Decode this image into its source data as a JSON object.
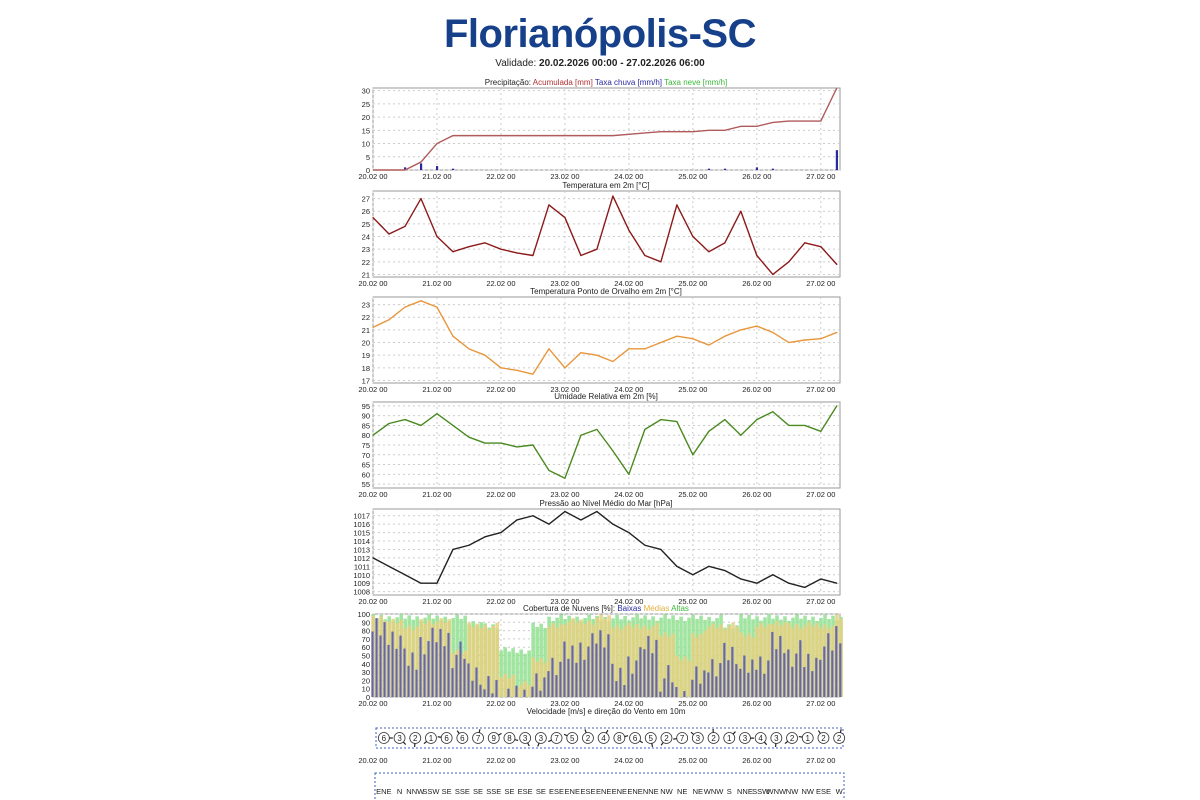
{
  "header": {
    "title": "Florianópolis-SC",
    "validity_label": "Validade:",
    "validity_range": "20.02.2026 00:00 - 27.02.2026 06:00"
  },
  "colors": {
    "title": "#16408a",
    "accum": "#b05a5a",
    "rain": "#2a2aa0",
    "snow": "#3cb83c",
    "temp": "#8b1a1a",
    "dew": "#e8963c",
    "rh": "#4a8a20",
    "pressure": "#222222",
    "low": "#5a5ab0",
    "mid": "#e8d080",
    "high": "#90e090"
  },
  "chart_data": [
    {
      "type": "line",
      "id": "precip",
      "title_parts": [
        {
          "t": "Precipitação: ",
          "c": "#222222"
        },
        {
          "t": "Acumulada [mm] ",
          "c": "#b03030"
        },
        {
          "t": "Taxa chuva [mm/h] ",
          "c": "#2a2aa0"
        },
        {
          "t": "Taxa neve [mm/h]",
          "c": "#3cb83c"
        }
      ],
      "xticks": [
        "20.02 00",
        "21.02 00",
        "22.02 00",
        "23.02 00",
        "24.02 00",
        "25.02 00",
        "26.02 00",
        "27.02 00"
      ],
      "ylim": [
        0,
        31
      ],
      "yticks": [
        0,
        5,
        10,
        15,
        20,
        25,
        30
      ],
      "x_step_hours": 6,
      "series": [
        {
          "name": "Acumulada [mm]",
          "values": [
            0,
            0,
            0,
            3,
            10,
            13,
            13,
            13,
            13,
            13,
            13,
            13,
            13,
            13,
            13,
            13,
            13.5,
            14,
            14.5,
            14.5,
            14.5,
            15,
            15,
            16.5,
            16.5,
            18,
            18.5,
            18.5,
            18.5,
            31
          ]
        },
        {
          "name": "Taxa chuva [mm/h]",
          "kind": "bar",
          "values": [
            0,
            0,
            1,
            2.5,
            1.5,
            0.5,
            0,
            0,
            0,
            0,
            0,
            0,
            0,
            0,
            0,
            0,
            0,
            0,
            0,
            0,
            0,
            0.5,
            0.5,
            0,
            1,
            0.5,
            0,
            0,
            0,
            7.5
          ]
        }
      ]
    },
    {
      "type": "line",
      "id": "temp",
      "title": "Temperatura em 2m [°C]",
      "ylim": [
        20.8,
        27.6
      ],
      "yticks": [
        21,
        22,
        23,
        24,
        25,
        26,
        27
      ],
      "series": [
        {
          "name": "Temperatura",
          "values": [
            25.5,
            24.2,
            24.8,
            27.0,
            24.0,
            22.8,
            23.2,
            23.5,
            23.0,
            22.7,
            22.5,
            26.5,
            25.5,
            22.5,
            23.0,
            27.2,
            24.5,
            22.5,
            22.0,
            26.5,
            24.0,
            22.8,
            23.5,
            26.0,
            22.5,
            21.0,
            22.0,
            23.5,
            23.2,
            21.8
          ]
        }
      ]
    },
    {
      "type": "line",
      "id": "dew",
      "title": "Temperatura Ponto de Orvalho em 2m [°C]",
      "ylim": [
        16.8,
        23.6
      ],
      "yticks": [
        17,
        18,
        19,
        20,
        21,
        22,
        23
      ],
      "series": [
        {
          "name": "Ponto de Orvalho",
          "values": [
            21.2,
            21.8,
            22.8,
            23.3,
            22.8,
            20.5,
            19.5,
            19.0,
            18.0,
            17.8,
            17.5,
            19.5,
            18.0,
            19.2,
            19.0,
            18.5,
            19.5,
            19.5,
            20.0,
            20.5,
            20.3,
            19.8,
            20.5,
            21.0,
            21.3,
            20.8,
            20.0,
            20.2,
            20.3,
            20.8
          ]
        }
      ]
    },
    {
      "type": "line",
      "id": "rh",
      "title": "Umidade Relativa em 2m [%]",
      "ylim": [
        53,
        97
      ],
      "yticks": [
        55,
        60,
        65,
        70,
        75,
        80,
        85,
        90,
        95
      ],
      "series": [
        {
          "name": "Umidade",
          "values": [
            80,
            86,
            88,
            85,
            91,
            85,
            79,
            76,
            76,
            74,
            75,
            62,
            58,
            80,
            83,
            72,
            60,
            83,
            88,
            87,
            70,
            82,
            88,
            80,
            88,
            92,
            85,
            85,
            82,
            95
          ]
        }
      ]
    },
    {
      "type": "line",
      "id": "pressure",
      "title": "Pressão ao Nível Médio do Mar [hPa]",
      "ylim": [
        1007.6,
        1017.8
      ],
      "yticks": [
        1008,
        1009,
        1010,
        1011,
        1012,
        1013,
        1014,
        1015,
        1016,
        1017
      ],
      "series": [
        {
          "name": "Pressão",
          "values": [
            1012,
            1011,
            1010,
            1009,
            1009,
            1013,
            1013.5,
            1014.5,
            1015,
            1016.5,
            1017,
            1016,
            1017.5,
            1016.5,
            1017.5,
            1016,
            1015,
            1013.5,
            1013,
            1011,
            1010,
            1011,
            1010.5,
            1009.5,
            1009,
            1010,
            1009,
            1008.5,
            1009.5,
            1009
          ]
        }
      ]
    },
    {
      "type": "bar",
      "id": "clouds",
      "title_parts": [
        {
          "t": "Cobertura de Nuvens [%]: ",
          "c": "#222222"
        },
        {
          "t": "Baixas ",
          "c": "#2a2aa0"
        },
        {
          "t": "Médias ",
          "c": "#e0b040"
        },
        {
          "t": "Altas",
          "c": "#3cb83c"
        }
      ],
      "ylim": [
        0,
        100
      ],
      "yticks": [
        0,
        10,
        20,
        30,
        40,
        50,
        60,
        70,
        80,
        90,
        100
      ],
      "series": [
        {
          "name": "Altas",
          "values": [
            100,
            100,
            100,
            100,
            100,
            100,
            95,
            90,
            60,
            60,
            90,
            100,
            100,
            100,
            100,
            100,
            100,
            100,
            100,
            100,
            100,
            100,
            90,
            100,
            100,
            100,
            100,
            100,
            100,
            100
          ]
        },
        {
          "name": "Médias",
          "values": [
            100,
            95,
            90,
            95,
            95,
            60,
            90,
            90,
            30,
            20,
            50,
            90,
            95,
            95,
            100,
            90,
            90,
            90,
            80,
            50,
            80,
            90,
            90,
            80,
            90,
            95,
            90,
            90,
            90,
            100
          ]
        },
        {
          "name": "Baixas",
          "values": [
            95,
            90,
            60,
            85,
            90,
            70,
            50,
            30,
            10,
            20,
            30,
            60,
            70,
            80,
            90,
            40,
            60,
            80,
            40,
            20,
            40,
            60,
            70,
            50,
            60,
            80,
            70,
            60,
            80,
            95
          ]
        }
      ]
    }
  ],
  "wind": {
    "title": "Velocidade [m/s] e direção do Vento em 10m",
    "speeds": [
      6,
      3,
      2,
      1,
      6,
      6,
      7,
      9,
      8,
      3,
      3,
      7,
      5,
      2,
      4,
      8,
      6,
      5,
      2,
      7,
      3,
      2,
      1,
      3,
      4,
      3,
      2,
      1,
      2,
      2
    ],
    "directions": [
      "ENE",
      "N",
      "NNW",
      "SSW",
      "SE",
      "SSE",
      "SE",
      "SSE",
      "SE",
      "ESE",
      "SE",
      "ESE",
      "ENE",
      "ESE",
      "ENE",
      "ENE",
      "ENE",
      "NNE",
      "NW",
      "NE",
      "NE",
      "WNW",
      "S",
      "NNE",
      "SSW",
      "WNW",
      "NW",
      "NW",
      "ESE",
      "W"
    ]
  }
}
